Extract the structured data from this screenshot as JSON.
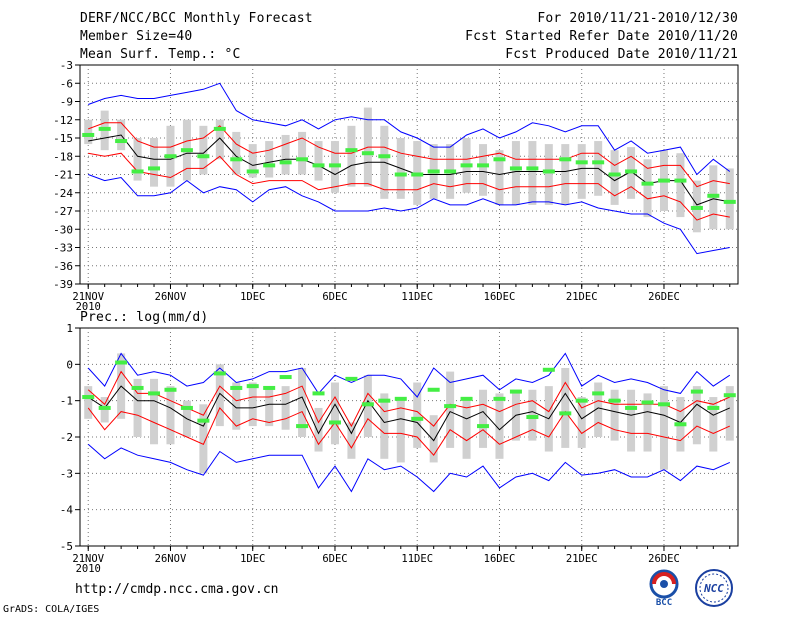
{
  "header": {
    "title": "DERF/NCC/BCC Monthly Forecast",
    "member_size": "Member Size=40",
    "variable": "Mean Surf. Temp.: °C",
    "period": "For 2010/11/21-2010/12/30",
    "started": "Fcst Started Refer Date 2010/11/20",
    "produced": "Fcst Produced Date 2010/11/21"
  },
  "footer": {
    "url": "http://cmdp.ncc.cma.gov.cn",
    "grads": "GrADS: COLA/IGES",
    "logo_bcc": "BCC",
    "logo_ncc": "NCC"
  },
  "colors": {
    "max_min": "#0000ff",
    "band": "#ff0000",
    "mean": "#000000",
    "member_box": "#d0d0d0",
    "green_mark": "#44ee44"
  },
  "chart_data": [
    {
      "id": "temp",
      "type": "ensemble-plume",
      "title": "",
      "ylabel": "Mean Surf. Temp.: °C",
      "ylim": [
        -39,
        -3
      ],
      "yticks": [
        -3,
        -6,
        -9,
        -12,
        -15,
        -18,
        -21,
        -24,
        -27,
        -30,
        -33,
        -36,
        -39
      ],
      "xticks": [
        {
          "day": 0,
          "label": "21NOV"
        },
        {
          "day": 5,
          "label": "26NOV"
        },
        {
          "day": 10,
          "label": "1DEC"
        },
        {
          "day": 15,
          "label": "6DEC"
        },
        {
          "day": 20,
          "label": "11DEC"
        },
        {
          "day": 25,
          "label": "16DEC"
        },
        {
          "day": 30,
          "label": "21DEC"
        },
        {
          "day": 35,
          "label": "26DEC"
        }
      ],
      "x_year_label": "2010",
      "days": [
        0,
        1,
        2,
        3,
        4,
        5,
        6,
        7,
        8,
        9,
        10,
        11,
        12,
        13,
        14,
        15,
        16,
        17,
        18,
        19,
        20,
        21,
        22,
        23,
        24,
        25,
        26,
        27,
        28,
        29,
        30,
        31,
        32,
        33,
        34,
        35,
        36,
        37,
        38,
        39
      ],
      "max": [
        -9.5,
        -8.5,
        -8,
        -8.5,
        -8.5,
        -8,
        -7.5,
        -7,
        -6,
        -10.5,
        -12,
        -12.5,
        -13,
        -12,
        -13.5,
        -12,
        -11.5,
        -12,
        -12,
        -14,
        -15,
        -16.5,
        -16.5,
        -14.5,
        -13.5,
        -15,
        -14,
        -12.5,
        -13,
        -14,
        -13,
        -13,
        -17,
        -15.5,
        -17.5,
        -17,
        -16.5,
        -21,
        -18.5,
        -20.5
      ],
      "min": [
        -21,
        -22,
        -21.5,
        -24.5,
        -24.5,
        -24,
        -22,
        -24,
        -23,
        -23.5,
        -25.5,
        -23.5,
        -23,
        -24.5,
        -25.5,
        -27,
        -27,
        -27,
        -26.5,
        -27,
        -26.5,
        -25,
        -26,
        -26,
        -25,
        -26,
        -26,
        -25.5,
        -25.5,
        -26,
        -25.5,
        -26.5,
        -27,
        -27.5,
        -27.5,
        -29,
        -30,
        -34,
        -33.5,
        -33
      ],
      "upper": [
        -13.5,
        -12.5,
        -12.5,
        -15.5,
        -16.5,
        -16.5,
        -15.5,
        -15,
        -13,
        -16,
        -17.5,
        -17,
        -16,
        -15,
        -16.5,
        -17.5,
        -17.5,
        -16.5,
        -16.5,
        -17.5,
        -18,
        -18.5,
        -18.5,
        -18.5,
        -18,
        -17.5,
        -18.5,
        -18.5,
        -18.5,
        -18.5,
        -17.5,
        -17.5,
        -19.5,
        -18,
        -20,
        -19.5,
        -19.5,
        -23,
        -22,
        -22.5
      ],
      "lower": [
        -17.5,
        -18,
        -17.5,
        -20.5,
        -21,
        -21.5,
        -20,
        -20,
        -18,
        -21,
        -22.5,
        -22,
        -22,
        -22,
        -23.5,
        -23,
        -22.5,
        -22.5,
        -23.5,
        -23.5,
        -23.5,
        -22.5,
        -23,
        -22.5,
        -22.5,
        -23.5,
        -23,
        -23,
        -23,
        -22.5,
        -22.5,
        -22.5,
        -24.5,
        -23,
        -25,
        -24.5,
        -25.5,
        -28.5,
        -27.5,
        -28
      ],
      "mean": [
        -15.5,
        -15,
        -14.5,
        -18,
        -18.5,
        -18.5,
        -17.5,
        -17.5,
        -15,
        -18,
        -19.5,
        -19,
        -18.5,
        -18.5,
        -19.5,
        -21,
        -19.5,
        -19,
        -19,
        -20,
        -21,
        -21,
        -21,
        -20.5,
        -20.5,
        -21,
        -20.5,
        -20.5,
        -20.5,
        -20.5,
        -20,
        -20,
        -22,
        -20.5,
        -22.5,
        -22,
        -22,
        -26,
        -25,
        -25.5
      ],
      "box_hi": [
        -12,
        -10.5,
        -12,
        -15,
        -15,
        -13,
        -12,
        -13,
        -12,
        -14,
        -16,
        -15.5,
        -14.5,
        -14,
        -15.5,
        -15.5,
        -13,
        -10,
        -13,
        -15,
        -15.5,
        -16,
        -16,
        -15,
        -16,
        -17,
        -15.5,
        -15.5,
        -16,
        -16,
        -16,
        -15.5,
        -17,
        -16.5,
        -18.5,
        -17,
        -17.5,
        -22,
        -19.5,
        -20
      ],
      "box_lo": [
        -16,
        -17,
        -17,
        -22,
        -23,
        -23,
        -22,
        -21,
        -18.5,
        -21,
        -21.5,
        -21.5,
        -21,
        -21,
        -22,
        -24,
        -23,
        -23,
        -25,
        -25,
        -26,
        -25,
        -25,
        -24,
        -24.5,
        -26,
        -26,
        -26,
        -26,
        -26,
        -25,
        -24.5,
        -26,
        -25,
        -28,
        -27,
        -28,
        -30.5,
        -30,
        -30
      ],
      "green": [
        -14.5,
        -13.5,
        -15.5,
        -20.5,
        -20,
        -18,
        -17,
        -18,
        -13.5,
        -18.5,
        -20.5,
        -19.5,
        -19,
        -18.5,
        -19.5,
        -19.5,
        -17,
        -17.5,
        -18,
        -21,
        -21,
        -20.5,
        -20.5,
        -19.5,
        -19.5,
        -18.5,
        -20,
        -20,
        -20.5,
        -18.5,
        -19,
        -19,
        -21,
        -20.5,
        -22.5,
        -22,
        -22,
        -26.5,
        -24.5,
        -25.5
      ]
    },
    {
      "id": "prec",
      "type": "ensemble-plume",
      "title": "",
      "ylabel": "Prec.: log(mm/d)",
      "ylim": [
        -5,
        1
      ],
      "yticks": [
        1,
        0,
        -1,
        -2,
        -3,
        -4,
        -5
      ],
      "xticks": [
        {
          "day": 0,
          "label": "21NOV"
        },
        {
          "day": 5,
          "label": "26NOV"
        },
        {
          "day": 10,
          "label": "1DEC"
        },
        {
          "day": 15,
          "label": "6DEC"
        },
        {
          "day": 20,
          "label": "11DEC"
        },
        {
          "day": 25,
          "label": "16DEC"
        },
        {
          "day": 30,
          "label": "21DEC"
        },
        {
          "day": 35,
          "label": "26DEC"
        }
      ],
      "x_year_label": "2010",
      "days": [
        0,
        1,
        2,
        3,
        4,
        5,
        6,
        7,
        8,
        9,
        10,
        11,
        12,
        13,
        14,
        15,
        16,
        17,
        18,
        19,
        20,
        21,
        22,
        23,
        24,
        25,
        26,
        27,
        28,
        29,
        30,
        31,
        32,
        33,
        34,
        35,
        36,
        37,
        38,
        39
      ],
      "max": [
        -0.1,
        -0.6,
        0.3,
        -0.3,
        -0.2,
        -0.3,
        -0.6,
        -0.5,
        -0.1,
        -0.5,
        -0.4,
        -0.2,
        -0.2,
        -0.1,
        -0.8,
        -0.3,
        -0.5,
        -0.3,
        -0.3,
        -0.4,
        -0.9,
        -0.1,
        -0.5,
        -0.4,
        -0.3,
        -0.7,
        -0.4,
        -0.5,
        -0.3,
        0.3,
        -0.6,
        -0.3,
        -0.5,
        -0.4,
        -0.5,
        -0.7,
        -0.8,
        -0.2,
        -0.6,
        -0.3
      ],
      "min": [
        -2.2,
        -2.6,
        -2.3,
        -2.5,
        -2.6,
        -2.7,
        -2.9,
        -3.05,
        -2.4,
        -2.7,
        -2.6,
        -2.5,
        -2.5,
        -2.5,
        -3.4,
        -2.8,
        -3.5,
        -2.6,
        -2.9,
        -2.8,
        -3.1,
        -3.5,
        -3,
        -3.1,
        -2.8,
        -3.4,
        -3.1,
        -3,
        -3.2,
        -2.7,
        -3.05,
        -3,
        -2.9,
        -3.1,
        -3.1,
        -2.9,
        -3.2,
        -2.8,
        -2.9,
        -2.7
      ],
      "upper": [
        -0.7,
        -1.1,
        -0.2,
        -0.8,
        -0.8,
        -1,
        -1.2,
        -1.4,
        -0.6,
        -1,
        -0.9,
        -0.9,
        -0.8,
        -0.6,
        -1.6,
        -0.9,
        -1.7,
        -0.8,
        -1.3,
        -1.2,
        -1.3,
        -1.7,
        -1.1,
        -1.2,
        -1.1,
        -1.3,
        -1.1,
        -1,
        -1.3,
        -0.5,
        -1.2,
        -1,
        -1.1,
        -1.1,
        -1.1,
        -1.1,
        -1.3,
        -1,
        -1.1,
        -0.9
      ],
      "lower": [
        -1.2,
        -1.8,
        -1.3,
        -1.4,
        -1.6,
        -1.8,
        -2,
        -2.2,
        -1.2,
        -1.7,
        -1.5,
        -1.6,
        -1.5,
        -1.3,
        -2.2,
        -1.6,
        -2.3,
        -1.5,
        -1.9,
        -1.9,
        -2,
        -2.5,
        -1.8,
        -2.1,
        -1.8,
        -2.2,
        -2,
        -1.8,
        -2,
        -1.3,
        -1.9,
        -1.6,
        -1.8,
        -1.9,
        -1.9,
        -2,
        -2.1,
        -1.7,
        -1.9,
        -1.7
      ],
      "mean": [
        -0.9,
        -1.2,
        -0.6,
        -1,
        -1,
        -1.2,
        -1.5,
        -1.7,
        -0.8,
        -1.2,
        -1.2,
        -1.1,
        -1.1,
        -0.9,
        -1.9,
        -1.1,
        -1.9,
        -1,
        -1.6,
        -1.5,
        -1.6,
        -2.1,
        -1.3,
        -1.5,
        -1.3,
        -1.8,
        -1.4,
        -1.3,
        -1.5,
        -0.8,
        -1.5,
        -1.2,
        -1.3,
        -1.4,
        -1.3,
        -1.4,
        -1.6,
        -1.1,
        -1.4,
        -1.2
      ],
      "box_hi": [
        -0.6,
        -0.9,
        0.3,
        -0.4,
        -0.4,
        -0.6,
        -1,
        -1.1,
        0,
        -0.5,
        -0.5,
        -0.6,
        -0.6,
        -0.1,
        -1.2,
        -0.5,
        -1.6,
        -0.3,
        -0.8,
        -0.9,
        -0.5,
        -1.4,
        -0.2,
        -0.9,
        -0.7,
        -0.8,
        -0.7,
        -0.7,
        -0.6,
        -0.1,
        -0.9,
        -0.5,
        -0.7,
        -0.7,
        -0.8,
        -0.6,
        -0.9,
        -0.6,
        -0.9,
        -0.6
      ],
      "box_lo": [
        -1.5,
        -1.6,
        -1.5,
        -2,
        -2.2,
        -2.2,
        -2,
        -3,
        -1.7,
        -1.8,
        -1.7,
        -1.7,
        -1.8,
        -2,
        -2.4,
        -2.2,
        -2.6,
        -2,
        -2.6,
        -2.7,
        -2.3,
        -2.7,
        -2.3,
        -2.6,
        -2.3,
        -2.6,
        -2.1,
        -2.1,
        -2.4,
        -2.3,
        -2.3,
        -2,
        -2.1,
        -2.4,
        -2.4,
        -2.9,
        -2.4,
        -2.2,
        -2.4,
        -2.1
      ],
      "green": [
        -0.9,
        -1.2,
        0.05,
        -0.65,
        -0.8,
        -0.7,
        -1.2,
        -1.55,
        -0.25,
        -0.65,
        -0.6,
        -0.65,
        -0.35,
        -1.7,
        -0.8,
        -1.6,
        -0.4,
        -1.1,
        -1,
        -0.95,
        -1.5,
        -0.7,
        -1.15,
        -0.95,
        -1.7,
        -0.95,
        -0.75,
        -1.45,
        -0.15,
        -1.35,
        -1,
        -0.8,
        -1,
        -1.2,
        -1.05,
        -1.1,
        -1.65,
        -0.75,
        -1.2,
        -0.85
      ]
    }
  ]
}
